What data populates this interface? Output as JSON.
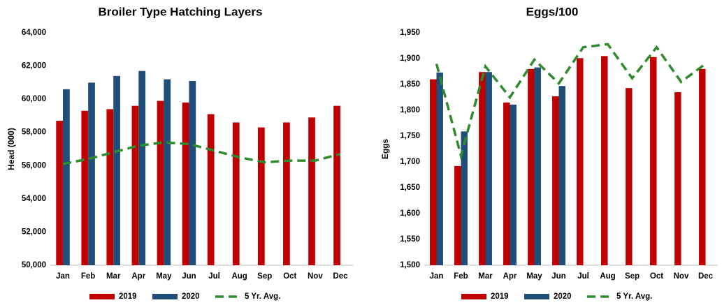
{
  "chart_data": [
    {
      "type": "bar",
      "title": "Broiler Type Hatching Layers",
      "y_label": "Head (000)",
      "categories": [
        "Jan",
        "Feb",
        "Mar",
        "Apr",
        "May",
        "Jun",
        "Jul",
        "Aug",
        "Sep",
        "Oct",
        "Nov",
        "Dec"
      ],
      "series": [
        {
          "name": "2019",
          "color": "#c00000",
          "values": [
            58700,
            59300,
            59400,
            59600,
            59900,
            59800,
            59100,
            58600,
            58300,
            58600,
            58900,
            59600
          ]
        },
        {
          "name": "2020",
          "color": "#1f4e79",
          "values": [
            60600,
            61000,
            61400,
            61700,
            61200,
            61100,
            null,
            null,
            null,
            null,
            null,
            null
          ]
        },
        {
          "name": "5 Yr. Avg.",
          "color": "#2e8b2e",
          "type": "line",
          "dashed": true,
          "values": [
            56100,
            56400,
            56800,
            57200,
            57400,
            57300,
            56900,
            56500,
            56200,
            56300,
            56300,
            56700
          ]
        }
      ],
      "ylim": [
        50000,
        64000
      ],
      "yticks": [
        {
          "value": 50000,
          "label": "50,000"
        },
        {
          "value": 52000,
          "label": "52,000"
        },
        {
          "value": 54000,
          "label": "54,000"
        },
        {
          "value": 56000,
          "label": "56,000"
        },
        {
          "value": 58000,
          "label": "58,000"
        },
        {
          "value": 60000,
          "label": "60,000"
        },
        {
          "value": 62000,
          "label": "62,000"
        },
        {
          "value": 64000,
          "label": "64,000"
        }
      ],
      "grid": false,
      "legend": "bottom"
    },
    {
      "type": "bar",
      "title": "Eggs/100",
      "y_label": "Eggs",
      "categories": [
        "Jan",
        "Feb",
        "Mar",
        "Apr",
        "May",
        "Jun",
        "Jul",
        "Aug",
        "Sep",
        "Oct",
        "Nov",
        "Dec"
      ],
      "series": [
        {
          "name": "2019",
          "color": "#c00000",
          "values": [
            1860,
            1692,
            1874,
            1815,
            1880,
            1827,
            1901,
            1905,
            1843,
            1903,
            1835,
            1880
          ]
        },
        {
          "name": "2020",
          "color": "#1f4e79",
          "values": [
            1873,
            1759,
            1874,
            1811,
            1883,
            1847,
            null,
            null,
            null,
            null,
            null,
            null
          ]
        },
        {
          "name": "5 Yr. Avg.",
          "color": "#2e8b2e",
          "type": "line",
          "dashed": true,
          "values": [
            1890,
            1712,
            1885,
            1825,
            1898,
            1852,
            1922,
            1928,
            1862,
            1922,
            1855,
            1890
          ]
        }
      ],
      "ylim": [
        1500,
        1950
      ],
      "yticks": [
        {
          "value": 1500,
          "label": "1,500"
        },
        {
          "value": 1550,
          "label": "1,550"
        },
        {
          "value": 1600,
          "label": "1,600"
        },
        {
          "value": 1650,
          "label": "1,650"
        },
        {
          "value": 1700,
          "label": "1,700"
        },
        {
          "value": 1750,
          "label": "1,750"
        },
        {
          "value": 1800,
          "label": "1,800"
        },
        {
          "value": 1850,
          "label": "1,850"
        },
        {
          "value": 1900,
          "label": "1,900"
        },
        {
          "value": 1950,
          "label": "1,950"
        }
      ],
      "grid": false,
      "legend": "bottom"
    }
  ]
}
